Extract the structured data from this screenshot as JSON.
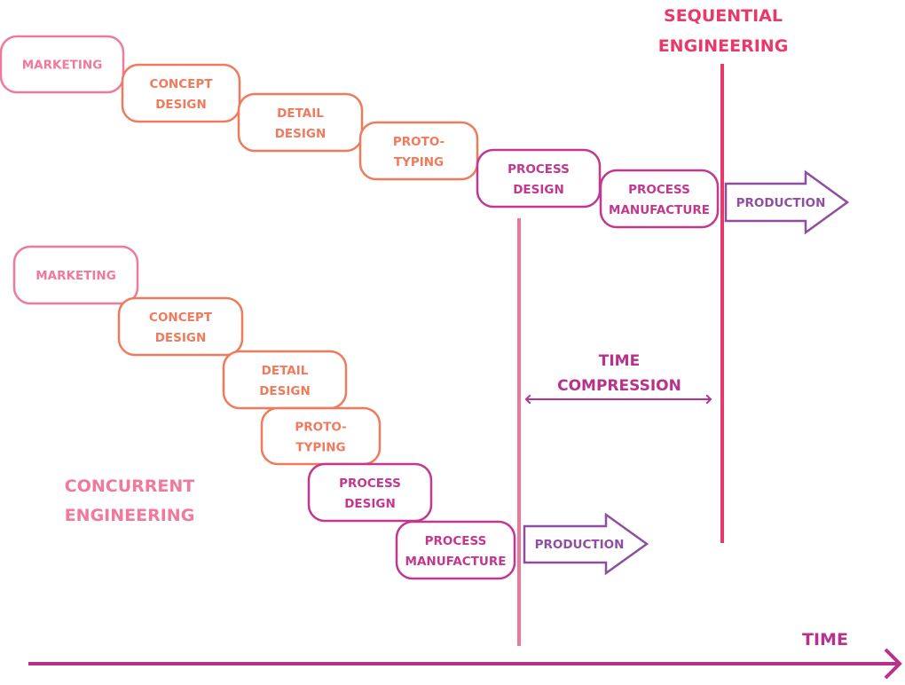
{
  "colors": {
    "marketing": "#ef7a9c",
    "design": "#ef7b5c",
    "process": "#c2388f",
    "production": "#8e4f9f",
    "sequential": "#e83a6a",
    "concurrent_line": "#ec7797",
    "time_axis": "#b8318b"
  },
  "sequential": {
    "title_line1": "SEQUENTIAL",
    "title_line2": "ENGINEERING",
    "stages": [
      {
        "line1": "MARKETING",
        "line2": ""
      },
      {
        "line1": "CONCEPT",
        "line2": "DESIGN"
      },
      {
        "line1": "DETAIL",
        "line2": "DESIGN"
      },
      {
        "line1": "PROTO-",
        "line2": "TYPING"
      },
      {
        "line1": "PROCESS",
        "line2": "DESIGN"
      },
      {
        "line1": "PROCESS",
        "line2": "MANUFACTURE"
      }
    ],
    "production": "PRODUCTION"
  },
  "concurrent": {
    "title_line1": "CONCURRENT",
    "title_line2": "ENGINEERING",
    "stages": [
      {
        "line1": "MARKETING",
        "line2": ""
      },
      {
        "line1": "CONCEPT",
        "line2": "DESIGN"
      },
      {
        "line1": "DETAIL",
        "line2": "DESIGN"
      },
      {
        "line1": "PROTO-",
        "line2": "TYPING"
      },
      {
        "line1": "PROCESS",
        "line2": "DESIGN"
      },
      {
        "line1": "PROCESS",
        "line2": "MANUFACTURE"
      }
    ],
    "production": "PRODUCTION"
  },
  "compression": {
    "line1": "TIME",
    "line2": "COMPRESSION"
  },
  "time_axis": {
    "label": "TIME"
  }
}
